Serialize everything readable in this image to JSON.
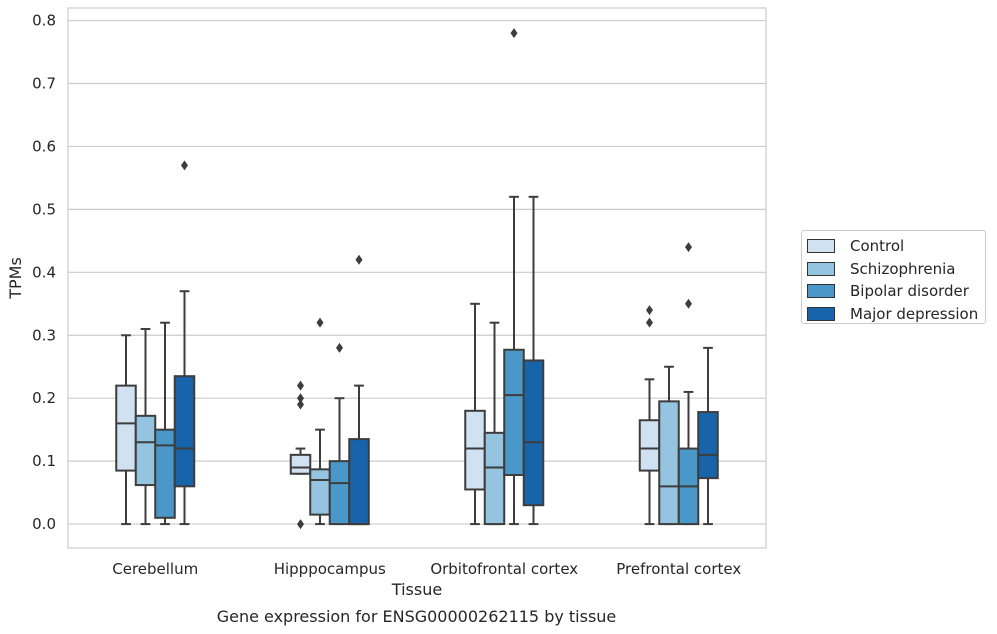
{
  "chart_data": {
    "type": "box",
    "title": "",
    "caption": "Gene expression for ENSG00000262115 by tissue",
    "xlabel": "Tissue",
    "ylabel": "TPMs",
    "ylim": [
      -0.038,
      0.82
    ],
    "yticks": [
      0.0,
      0.1,
      0.2,
      0.3,
      0.4,
      0.5,
      0.6,
      0.7,
      0.8
    ],
    "ytick_labels": [
      "0.0",
      "0.1",
      "0.2",
      "0.3",
      "0.4",
      "0.5",
      "0.6",
      "0.7",
      "0.8"
    ],
    "grid": true,
    "legend_position": "right",
    "categories": [
      "Cerebellum",
      "Hipppocampus",
      "Orbitofrontal cortex",
      "Prefrontal cortex"
    ],
    "series": [
      {
        "name": "Control",
        "color": "#d0e1f2",
        "boxes": [
          {
            "whislo": 0.0,
            "q1": 0.085,
            "med": 0.16,
            "q3": 0.22,
            "whishi": 0.3,
            "fliers": []
          },
          {
            "whislo": 0.08,
            "q1": 0.08,
            "med": 0.09,
            "q3": 0.11,
            "whishi": 0.12,
            "fliers": [
              0.0,
              0.19,
              0.2,
              0.22
            ]
          },
          {
            "whislo": 0.0,
            "q1": 0.055,
            "med": 0.12,
            "q3": 0.18,
            "whishi": 0.35,
            "fliers": []
          },
          {
            "whislo": 0.0,
            "q1": 0.085,
            "med": 0.12,
            "q3": 0.165,
            "whishi": 0.23,
            "fliers": [
              0.32,
              0.34
            ]
          }
        ]
      },
      {
        "name": "Schizophrenia",
        "color": "#94c4df",
        "boxes": [
          {
            "whislo": 0.0,
            "q1": 0.062,
            "med": 0.13,
            "q3": 0.172,
            "whishi": 0.31,
            "fliers": []
          },
          {
            "whislo": 0.0,
            "q1": 0.015,
            "med": 0.07,
            "q3": 0.087,
            "whishi": 0.15,
            "fliers": [
              0.32
            ]
          },
          {
            "whislo": 0.0,
            "q1": 0.0,
            "med": 0.09,
            "q3": 0.145,
            "whishi": 0.32,
            "fliers": []
          },
          {
            "whislo": 0.0,
            "q1": 0.0,
            "med": 0.06,
            "q3": 0.195,
            "whishi": 0.25,
            "fliers": []
          }
        ]
      },
      {
        "name": "Bipolar disorder",
        "color": "#4a98c9",
        "boxes": [
          {
            "whislo": 0.0,
            "q1": 0.01,
            "med": 0.125,
            "q3": 0.15,
            "whishi": 0.32,
            "fliers": []
          },
          {
            "whislo": 0.0,
            "q1": 0.0,
            "med": 0.065,
            "q3": 0.1,
            "whishi": 0.2,
            "fliers": [
              0.28
            ]
          },
          {
            "whislo": 0.0,
            "q1": 0.078,
            "med": 0.205,
            "q3": 0.277,
            "whishi": 0.52,
            "fliers": [
              0.78
            ]
          },
          {
            "whislo": 0.0,
            "q1": 0.0,
            "med": 0.06,
            "q3": 0.12,
            "whishi": 0.21,
            "fliers": [
              0.35,
              0.44
            ]
          }
        ]
      },
      {
        "name": "Major depression",
        "color": "#1764ab",
        "boxes": [
          {
            "whislo": 0.0,
            "q1": 0.06,
            "med": 0.12,
            "q3": 0.235,
            "whishi": 0.37,
            "fliers": [
              0.57
            ]
          },
          {
            "whislo": 0.0,
            "q1": 0.0,
            "med": 0.0,
            "q3": 0.135,
            "whishi": 0.22,
            "fliers": [
              0.42
            ]
          },
          {
            "whislo": 0.0,
            "q1": 0.03,
            "med": 0.13,
            "q3": 0.26,
            "whishi": 0.52,
            "fliers": []
          },
          {
            "whislo": 0.0,
            "q1": 0.073,
            "med": 0.11,
            "q3": 0.178,
            "whishi": 0.28,
            "fliers": []
          }
        ]
      }
    ]
  }
}
